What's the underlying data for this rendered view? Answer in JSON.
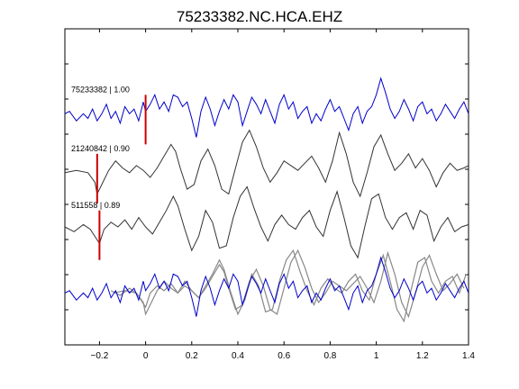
{
  "chart_data": {
    "type": "line",
    "title": "75233382.NC.HCA.EHZ",
    "xlabel": "",
    "ylabel": "",
    "xlim": [
      -0.35,
      1.4
    ],
    "xticks": [
      -0.2,
      0,
      0.2,
      0.4,
      0.6,
      0.8,
      1,
      1.2,
      1.4
    ],
    "xtick_labels": [
      "−0.2",
      "0",
      "0.2",
      "0.4",
      "0.6",
      "0.8",
      "1",
      "1.2",
      "1.4"
    ],
    "yticks_count": 8,
    "grid": false,
    "colors": {
      "primary": "#0000cc",
      "similar": "#333333",
      "stack_gray": "#888888",
      "pick": "#cc0000"
    },
    "series": [
      {
        "label": "75233382 | 1.00",
        "color": "#0000cc",
        "baseline": 0.5,
        "pick_x": 0,
        "x": [
          -0.35,
          -0.33,
          -0.3,
          -0.27,
          -0.25,
          -0.23,
          -0.21,
          -0.19,
          -0.17,
          -0.15,
          -0.13,
          -0.11,
          -0.09,
          -0.07,
          -0.05,
          -0.03,
          -0.01,
          0.0,
          0.02,
          0.04,
          0.06,
          0.08,
          0.1,
          0.12,
          0.14,
          0.16,
          0.18,
          0.2,
          0.22,
          0.24,
          0.26,
          0.28,
          0.3,
          0.32,
          0.34,
          0.36,
          0.38,
          0.4,
          0.42,
          0.44,
          0.46,
          0.48,
          0.5,
          0.52,
          0.54,
          0.56,
          0.58,
          0.6,
          0.62,
          0.64,
          0.66,
          0.68,
          0.7,
          0.72,
          0.74,
          0.76,
          0.78,
          0.8,
          0.82,
          0.84,
          0.86,
          0.88,
          0.9,
          0.92,
          0.94,
          0.96,
          0.98,
          1.0,
          1.02,
          1.04,
          1.06,
          1.08,
          1.1,
          1.12,
          1.14,
          1.16,
          1.18,
          1.2,
          1.22,
          1.24,
          1.26,
          1.28,
          1.3,
          1.32,
          1.34,
          1.36,
          1.38,
          1.4
        ],
        "y": [
          0.1,
          0.2,
          -0.2,
          0.1,
          -0.1,
          0.3,
          -0.2,
          0.1,
          0.5,
          -0.1,
          0.2,
          -0.3,
          0.4,
          0.1,
          0.3,
          -0.2,
          0.6,
          0.2,
          0.5,
          0.9,
          0.3,
          0.6,
          0.2,
          0.9,
          0.8,
          0.4,
          0.6,
          -0.1,
          -0.9,
          0.2,
          0.8,
          0.3,
          -0.4,
          0.2,
          0.7,
          0.3,
          0.9,
          0.6,
          -0.4,
          0.2,
          0.8,
          0.5,
          0.1,
          0.7,
          0.2,
          -0.3,
          0.5,
          0.9,
          0.3,
          0.6,
          -0.1,
          0.2,
          0.4,
          -0.3,
          0.1,
          -0.2,
          0.3,
          0.7,
          0.2,
          0.4,
          -0.1,
          -0.6,
          0.1,
          0.4,
          -0.3,
          0.2,
          0.4,
          0.9,
          1.6,
          1.0,
          0.3,
          -0.1,
          0.2,
          0.7,
          0.3,
          -0.2,
          0.4,
          0.6,
          0.1,
          0.3,
          -0.2,
          0.1,
          0.5,
          0.2,
          -0.1,
          0.3,
          0.6,
          0.1
        ]
      },
      {
        "label": "21240842 | 0.90",
        "color": "#333333",
        "baseline": -2.0,
        "pick_x": -0.21,
        "x": [
          -0.35,
          -0.3,
          -0.25,
          -0.22,
          -0.21,
          -0.19,
          -0.16,
          -0.13,
          -0.1,
          -0.07,
          -0.04,
          -0.01,
          0.02,
          0.05,
          0.08,
          0.11,
          0.13,
          0.15,
          0.18,
          0.21,
          0.24,
          0.27,
          0.3,
          0.33,
          0.36,
          0.39,
          0.42,
          0.45,
          0.48,
          0.51,
          0.54,
          0.57,
          0.6,
          0.63,
          0.66,
          0.69,
          0.72,
          0.75,
          0.78,
          0.81,
          0.84,
          0.87,
          0.9,
          0.93,
          0.96,
          0.99,
          1.02,
          1.05,
          1.08,
          1.11,
          1.14,
          1.17,
          1.2,
          1.23,
          1.26,
          1.29,
          1.32,
          1.35,
          1.38,
          1.4
        ],
        "y": [
          0.1,
          0.2,
          0.1,
          -0.3,
          -0.8,
          -0.4,
          0.2,
          0.6,
          0.3,
          0.1,
          0.4,
          0.2,
          -0.1,
          0.3,
          0.8,
          1.3,
          1.0,
          0.3,
          -0.6,
          -0.4,
          0.6,
          1.1,
          0.4,
          -0.6,
          -0.8,
          0.3,
          1.4,
          1.9,
          1.2,
          0.3,
          -0.3,
          0.1,
          0.6,
          0.4,
          0.2,
          0.5,
          0.8,
          0.3,
          -0.3,
          0.6,
          1.8,
          0.9,
          -0.3,
          -0.9,
          0.1,
          1.2,
          1.7,
          0.9,
          0.2,
          0.5,
          0.9,
          0.3,
          0.7,
          0.2,
          -0.5,
          0.1,
          0.5,
          0.2,
          0.3,
          0.4
        ]
      },
      {
        "label": "511558 | 0.89",
        "color": "#333333",
        "baseline": -4.4,
        "pick_x": -0.2,
        "x": [
          -0.35,
          -0.31,
          -0.27,
          -0.24,
          -0.22,
          -0.2,
          -0.18,
          -0.15,
          -0.12,
          -0.09,
          -0.06,
          -0.03,
          0.0,
          0.03,
          0.06,
          0.09,
          0.12,
          0.14,
          0.17,
          0.2,
          0.23,
          0.26,
          0.29,
          0.32,
          0.35,
          0.38,
          0.41,
          0.44,
          0.47,
          0.5,
          0.53,
          0.56,
          0.59,
          0.62,
          0.65,
          0.68,
          0.71,
          0.74,
          0.77,
          0.8,
          0.83,
          0.86,
          0.89,
          0.92,
          0.95,
          0.98,
          1.01,
          1.04,
          1.07,
          1.1,
          1.13,
          1.16,
          1.19,
          1.22,
          1.25,
          1.28,
          1.31,
          1.34,
          1.37,
          1.4
        ],
        "y": [
          0.2,
          0.0,
          0.3,
          0.1,
          -0.2,
          -0.5,
          0.1,
          0.4,
          0.2,
          0.5,
          0.1,
          0.6,
          0.2,
          -0.1,
          0.4,
          0.9,
          1.5,
          1.1,
          0.1,
          -0.8,
          -0.2,
          0.9,
          0.4,
          -0.7,
          -0.6,
          0.6,
          1.5,
          1.9,
          1.0,
          0.2,
          -0.4,
          0.3,
          0.7,
          0.3,
          0.1,
          0.6,
          0.9,
          0.2,
          -0.2,
          0.9,
          1.7,
          0.6,
          -0.6,
          -1.1,
          0.2,
          1.4,
          1.6,
          0.6,
          0.1,
          0.6,
          0.8,
          0.1,
          0.9,
          0.7,
          -0.4,
          0.2,
          0.6,
          0.0,
          0.2,
          0.3
        ]
      }
    ],
    "stack": {
      "baseline": -7.1,
      "members": [
        "75233382 | 1.00",
        "21240842 | 0.90",
        "511558 | 0.89"
      ]
    }
  }
}
